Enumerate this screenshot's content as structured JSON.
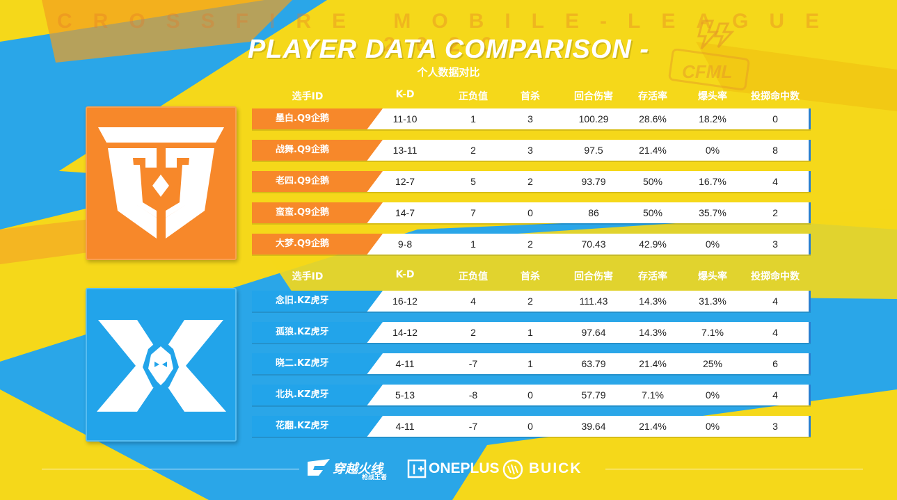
{
  "banner": "CROSSFIRE MOBILE-LEAGUE 2020",
  "title": "PLAYER DATA COMPARISON -",
  "subtitle": "个人数据对比",
  "headers": [
    "选手ID",
    "K-D",
    "正负值",
    "首杀",
    "回合伤害",
    "存活率",
    "爆头率",
    "投掷命中数"
  ],
  "colors": {
    "orange": "#f7882a",
    "blue": "#22a4ea",
    "yellow": "#f5d81a"
  },
  "teams": [
    {
      "key": "q9",
      "logo": "q9-logo-icon",
      "players": [
        {
          "id": "墨白.Q9企鹅",
          "kd": "11-10",
          "pm": "1",
          "fk": "3",
          "dmg": "100.29",
          "surv": "28.6%",
          "hs": "18.2%",
          "throw": "0"
        },
        {
          "id": "战舞.Q9企鹅",
          "kd": "13-11",
          "pm": "2",
          "fk": "3",
          "dmg": "97.5",
          "surv": "21.4%",
          "hs": "0%",
          "throw": "8"
        },
        {
          "id": "老四.Q9企鹅",
          "kd": "12-7",
          "pm": "5",
          "fk": "2",
          "dmg": "93.79",
          "surv": "50%",
          "hs": "16.7%",
          "throw": "4"
        },
        {
          "id": "蛮蛮.Q9企鹅",
          "kd": "14-7",
          "pm": "7",
          "fk": "0",
          "dmg": "86",
          "surv": "50%",
          "hs": "35.7%",
          "throw": "2"
        },
        {
          "id": "大梦.Q9企鹅",
          "kd": "9-8",
          "pm": "1",
          "fk": "2",
          "dmg": "70.43",
          "surv": "42.9%",
          "hs": "0%",
          "throw": "3"
        }
      ]
    },
    {
      "key": "kz",
      "logo": "kz-logo-icon",
      "players": [
        {
          "id": "念旧.KZ虎牙",
          "kd": "16-12",
          "pm": "4",
          "fk": "2",
          "dmg": "111.43",
          "surv": "14.3%",
          "hs": "31.3%",
          "throw": "4"
        },
        {
          "id": "孤狼.KZ虎牙",
          "kd": "14-12",
          "pm": "2",
          "fk": "1",
          "dmg": "97.64",
          "surv": "14.3%",
          "hs": "7.1%",
          "throw": "4"
        },
        {
          "id": "晓二.KZ虎牙",
          "kd": "4-11",
          "pm": "-7",
          "fk": "1",
          "dmg": "63.79",
          "surv": "21.4%",
          "hs": "25%",
          "throw": "6"
        },
        {
          "id": "北执.KZ虎牙",
          "kd": "5-13",
          "pm": "-8",
          "fk": "0",
          "dmg": "57.79",
          "surv": "7.1%",
          "hs": "0%",
          "throw": "4"
        },
        {
          "id": "花翻.KZ虎牙",
          "kd": "4-11",
          "pm": "-7",
          "fk": "0",
          "dmg": "39.64",
          "surv": "21.4%",
          "hs": "0%",
          "throw": "3"
        }
      ]
    }
  ],
  "footer": {
    "brand1": "穿越火线",
    "brand1_sub": "枪战王者",
    "brand2": "ONEPLUS",
    "brand3": "BUICK"
  },
  "watermark": "CFML"
}
